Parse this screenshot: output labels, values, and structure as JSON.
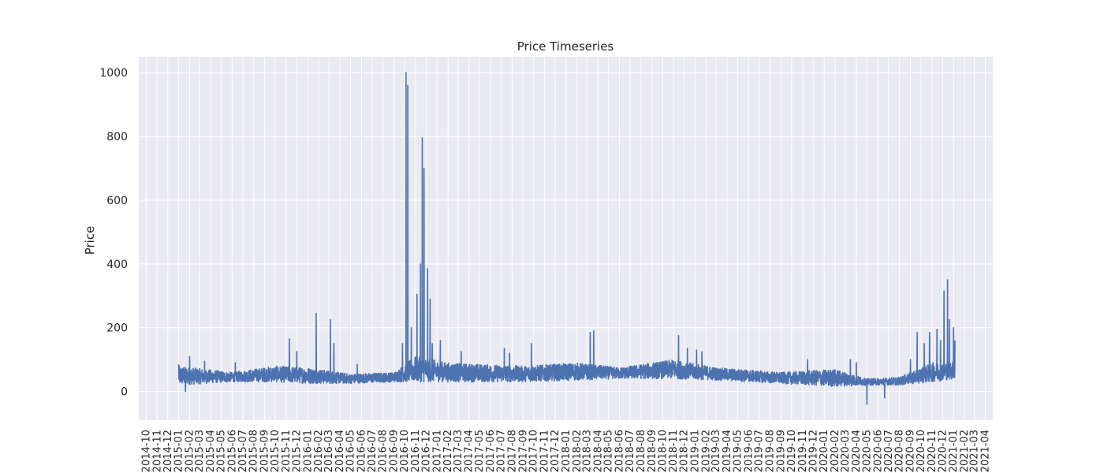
{
  "chart_data": {
    "type": "line",
    "title": "Price Timeseries",
    "xlabel": "",
    "ylabel": "Price",
    "ylim": [
      -90,
      1050
    ],
    "xlim": [
      "2014-09-10",
      "2021-04-22"
    ],
    "grid": true,
    "legend": "none",
    "colors": {
      "background": "#eaeaf2",
      "grid": "#ffffff",
      "line": "#4c72b0"
    },
    "y_ticks": [
      0,
      200,
      400,
      600,
      800,
      1000
    ],
    "x_ticks": [
      "2014-10",
      "2014-11",
      "2014-12",
      "2015-01",
      "2015-02",
      "2015-03",
      "2015-04",
      "2015-05",
      "2015-06",
      "2015-07",
      "2015-08",
      "2015-09",
      "2015-10",
      "2015-11",
      "2015-12",
      "2016-01",
      "2016-02",
      "2016-03",
      "2016-04",
      "2016-05",
      "2016-06",
      "2016-07",
      "2016-08",
      "2016-09",
      "2016-10",
      "2016-11",
      "2016-12",
      "2017-01",
      "2017-02",
      "2017-03",
      "2017-04",
      "2017-05",
      "2017-06",
      "2017-07",
      "2017-08",
      "2017-09",
      "2017-10",
      "2017-11",
      "2017-12",
      "2018-01",
      "2018-02",
      "2018-03",
      "2018-04",
      "2018-05",
      "2018-06",
      "2018-07",
      "2018-08",
      "2018-09",
      "2018-10",
      "2018-11",
      "2018-12",
      "2019-01",
      "2019-02",
      "2019-03",
      "2019-04",
      "2019-05",
      "2019-06",
      "2019-07",
      "2019-08",
      "2019-09",
      "2019-10",
      "2019-11",
      "2019-12",
      "2020-01",
      "2020-02",
      "2020-03",
      "2020-04",
      "2020-05",
      "2020-06",
      "2020-07",
      "2020-08",
      "2020-09",
      "2020-10",
      "2020-11",
      "2020-12",
      "2021-01",
      "2021-02",
      "2021-03",
      "2021-04"
    ],
    "series": [
      {
        "color": "#4c72b0",
        "data_range": [
          "2015-01-01",
          "2021-01-05"
        ],
        "baseline_low": [
          [
            "2015-01-01",
            20
          ],
          [
            "2015-06-01",
            30
          ],
          [
            "2015-10-01",
            30
          ],
          [
            "2016-01-01",
            25
          ],
          [
            "2016-05-01",
            25
          ],
          [
            "2016-09-01",
            30
          ],
          [
            "2016-11-01",
            30
          ],
          [
            "2017-02-01",
            30
          ],
          [
            "2017-09-01",
            30
          ],
          [
            "2018-02-01",
            35
          ],
          [
            "2018-06-01",
            40
          ],
          [
            "2018-11-01",
            40
          ],
          [
            "2019-03-01",
            35
          ],
          [
            "2019-09-01",
            25
          ],
          [
            "2020-02-01",
            15
          ],
          [
            "2020-05-01",
            20
          ],
          [
            "2020-08-01",
            20
          ],
          [
            "2020-11-01",
            30
          ],
          [
            "2021-01-05",
            40
          ]
        ],
        "baseline_high": [
          [
            "2015-01-01",
            80
          ],
          [
            "2015-06-01",
            60
          ],
          [
            "2015-10-01",
            80
          ],
          [
            "2016-01-01",
            75
          ],
          [
            "2016-05-01",
            55
          ],
          [
            "2016-09-01",
            60
          ],
          [
            "2016-11-01",
            110
          ],
          [
            "2017-02-01",
            90
          ],
          [
            "2017-09-01",
            80
          ],
          [
            "2018-02-01",
            90
          ],
          [
            "2018-06-01",
            75
          ],
          [
            "2018-11-01",
            100
          ],
          [
            "2019-03-01",
            75
          ],
          [
            "2019-09-01",
            60
          ],
          [
            "2020-02-01",
            70
          ],
          [
            "2020-05-01",
            40
          ],
          [
            "2020-08-01",
            45
          ],
          [
            "2020-11-01",
            90
          ],
          [
            "2021-01-05",
            95
          ]
        ],
        "spikes": [
          [
            "2015-01-01",
            85
          ],
          [
            "2015-01-20",
            0
          ],
          [
            "2015-02-01",
            110
          ],
          [
            "2015-03-15",
            95
          ],
          [
            "2015-06-10",
            90
          ],
          [
            "2015-11-10",
            165
          ],
          [
            "2015-12-01",
            125
          ],
          [
            "2016-01-25",
            245
          ],
          [
            "2016-03-05",
            225
          ],
          [
            "2016-03-15",
            150
          ],
          [
            "2016-05-20",
            85
          ],
          [
            "2016-09-25",
            150
          ],
          [
            "2016-10-05",
            1000
          ],
          [
            "2016-10-10",
            960
          ],
          [
            "2016-10-20",
            200
          ],
          [
            "2016-11-05",
            305
          ],
          [
            "2016-11-15",
            400
          ],
          [
            "2016-11-20",
            795
          ],
          [
            "2016-11-25",
            700
          ],
          [
            "2016-12-05",
            385
          ],
          [
            "2016-12-12",
            290
          ],
          [
            "2016-12-18",
            150
          ],
          [
            "2017-01-10",
            160
          ],
          [
            "2017-03-10",
            125
          ],
          [
            "2017-07-10",
            135
          ],
          [
            "2017-07-25",
            120
          ],
          [
            "2017-09-25",
            150
          ],
          [
            "2018-03-10",
            185
          ],
          [
            "2018-03-20",
            190
          ],
          [
            "2018-11-15",
            175
          ],
          [
            "2018-12-10",
            135
          ],
          [
            "2019-01-05",
            130
          ],
          [
            "2019-01-20",
            125
          ],
          [
            "2019-11-15",
            100
          ],
          [
            "2020-03-15",
            100
          ],
          [
            "2020-04-01",
            90
          ],
          [
            "2020-05-01",
            -40
          ],
          [
            "2020-06-20",
            -20
          ],
          [
            "2020-09-01",
            100
          ],
          [
            "2020-09-20",
            185
          ],
          [
            "2020-10-10",
            150
          ],
          [
            "2020-10-25",
            185
          ],
          [
            "2020-11-15",
            195
          ],
          [
            "2020-11-25",
            160
          ],
          [
            "2020-12-05",
            315
          ],
          [
            "2020-12-15",
            350
          ],
          [
            "2020-12-20",
            225
          ],
          [
            "2021-01-01",
            200
          ],
          [
            "2021-01-05",
            160
          ]
        ]
      }
    ]
  }
}
